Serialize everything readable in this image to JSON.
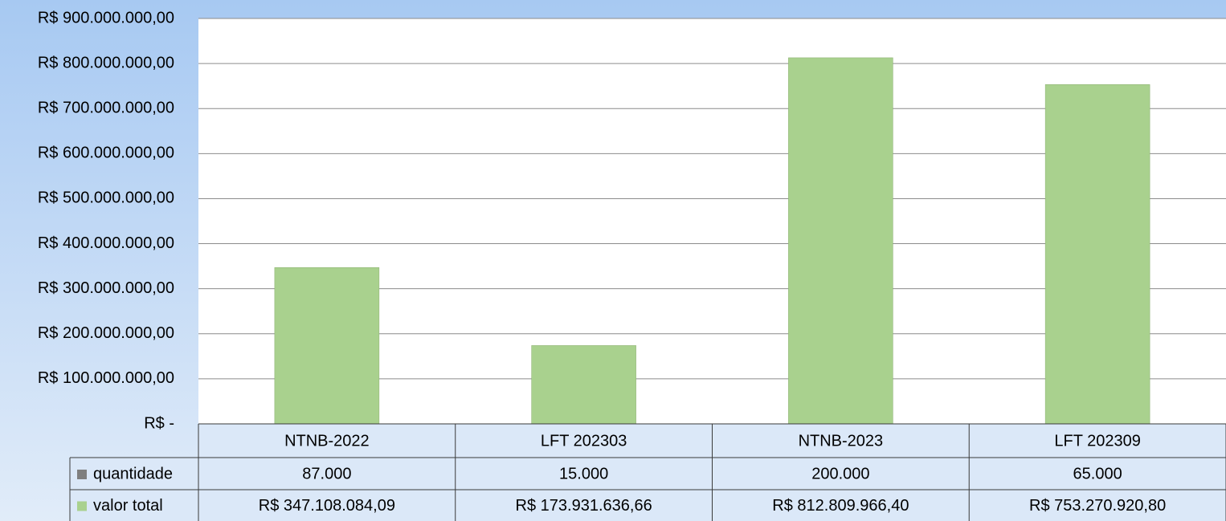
{
  "chart_data": {
    "type": "bar",
    "categories": [
      "NTNB-2022",
      "LFT 202303",
      "NTNB-2023",
      "LFT 202309"
    ],
    "series": [
      {
        "name": "quantidade",
        "color": "#7f7f7f",
        "values": [
          87000,
          15000,
          200000,
          65000
        ],
        "value_labels": [
          "87.000",
          "15.000",
          "200.000",
          "65.000"
        ]
      },
      {
        "name": "valor total",
        "color": "#a9d18e",
        "values": [
          347108084.09,
          173931636.66,
          812809966.4,
          753270920.8
        ],
        "value_labels": [
          "R$ 347.108.084,09",
          "R$ 173.931.636,66",
          "R$ 812.809.966,40",
          "R$ 753.270.920,80"
        ]
      }
    ],
    "ylim": [
      0,
      900000000
    ],
    "yticks": [
      {
        "value": 0,
        "label": "R$ -"
      },
      {
        "value": 100000000,
        "label": "R$ 100.000.000,00"
      },
      {
        "value": 200000000,
        "label": "R$ 200.000.000,00"
      },
      {
        "value": 300000000,
        "label": "R$ 300.000.000,00"
      },
      {
        "value": 400000000,
        "label": "R$ 400.000.000,00"
      },
      {
        "value": 500000000,
        "label": "R$ 500.000.000,00"
      },
      {
        "value": 600000000,
        "label": "R$ 600.000.000,00"
      },
      {
        "value": 700000000,
        "label": "R$ 700.000.000,00"
      },
      {
        "value": 800000000,
        "label": "R$ 800.000.000,00"
      },
      {
        "value": 900000000,
        "label": "R$ 900.000.000,00"
      }
    ],
    "grid": true
  }
}
